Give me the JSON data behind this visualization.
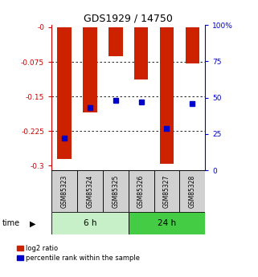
{
  "title": "GDS1929 / 14750",
  "categories": [
    "GSM85323",
    "GSM85324",
    "GSM85325",
    "GSM85326",
    "GSM85327",
    "GSM85328"
  ],
  "log2_ratio": [
    -0.285,
    -0.185,
    -0.063,
    -0.113,
    -0.295,
    -0.078
  ],
  "percentile_rank": [
    22,
    43,
    48,
    47,
    29,
    46
  ],
  "groups": [
    {
      "label": "6 h",
      "start": 0,
      "end": 3,
      "color": "#c8f0c8"
    },
    {
      "label": "24 h",
      "start": 3,
      "end": 6,
      "color": "#44cc44"
    }
  ],
  "bar_color_red": "#cc2200",
  "bar_color_blue": "#0000cc",
  "ylim_left": [
    -0.31,
    0.005
  ],
  "ylim_right": [
    0,
    100
  ],
  "yticks_left": [
    -0.3,
    -0.225,
    -0.15,
    -0.075,
    0.0
  ],
  "yticks_left_labels": [
    "-0.3",
    "-0.225",
    "-0.15",
    "-0.075",
    "-0"
  ],
  "yticks_right": [
    0,
    25,
    50,
    75,
    100
  ],
  "yticks_right_labels": [
    "0",
    "25",
    "50",
    "75",
    "100%"
  ],
  "background_color": "#ffffff",
  "left_axis_color": "#cc0000",
  "right_axis_color": "#0000cc",
  "bar_width": 0.55
}
